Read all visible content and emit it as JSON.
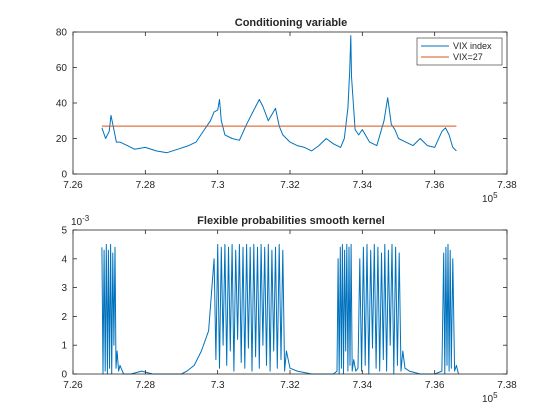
{
  "colors": {
    "series_blue": "#0072BD",
    "series_orange": "#D95319",
    "axis": "#262626"
  },
  "chart_data": [
    {
      "type": "line",
      "title": "Conditioning variable",
      "xlabel": "",
      "ylabel": "",
      "xlim": [
        7.26,
        7.38
      ],
      "ylim": [
        0,
        80
      ],
      "x_ticks": [
        "7.26",
        "7.28",
        "7.3",
        "7.32",
        "7.34",
        "7.36",
        "7.38"
      ],
      "x_tick_values": [
        7.26,
        7.28,
        7.3,
        7.32,
        7.34,
        7.36,
        7.38
      ],
      "x_multiplier": "10",
      "x_multiplier_exp": "5",
      "y_ticks": [
        "0",
        "20",
        "40",
        "60",
        "80"
      ],
      "y_tick_values": [
        0,
        20,
        40,
        60,
        80
      ],
      "legend": {
        "position": "top-right",
        "entries": [
          "VIX index",
          "VIX=27"
        ]
      },
      "series": [
        {
          "name": "VIX index",
          "color": "#0072BD",
          "x": [
            7.268,
            7.269,
            7.27,
            7.2705,
            7.271,
            7.272,
            7.273,
            7.275,
            7.277,
            7.28,
            7.283,
            7.286,
            7.289,
            7.292,
            7.294,
            7.296,
            7.298,
            7.299,
            7.3,
            7.3005,
            7.301,
            7.302,
            7.304,
            7.306,
            7.308,
            7.31,
            7.3115,
            7.3125,
            7.314,
            7.316,
            7.317,
            7.318,
            7.32,
            7.322,
            7.324,
            7.326,
            7.328,
            7.33,
            7.332,
            7.334,
            7.335,
            7.336,
            7.3365,
            7.3368,
            7.337,
            7.3375,
            7.338,
            7.339,
            7.34,
            7.342,
            7.344,
            7.346,
            7.347,
            7.348,
            7.349,
            7.35,
            7.352,
            7.354,
            7.356,
            7.358,
            7.36,
            7.362,
            7.363,
            7.364,
            7.365,
            7.366
          ],
          "y": [
            26,
            20,
            24,
            33,
            28,
            18,
            18,
            16,
            14,
            15,
            13,
            12,
            14,
            16,
            18,
            24,
            30,
            35,
            36,
            42,
            30,
            22,
            20,
            19,
            28,
            36,
            42,
            38,
            30,
            37,
            27,
            22,
            18,
            16,
            15,
            13,
            16,
            20,
            17,
            15,
            20,
            37,
            58,
            78,
            55,
            40,
            25,
            22,
            25,
            18,
            16,
            30,
            43,
            28,
            25,
            20,
            18,
            16,
            20,
            16,
            15,
            24,
            26,
            22,
            15,
            13
          ]
        },
        {
          "name": "VIX=27",
          "color": "#D95319",
          "x": [
            7.268,
            7.366
          ],
          "y": [
            27,
            27
          ]
        }
      ]
    },
    {
      "type": "line",
      "title": "Flexible probabilities smooth kernel",
      "xlabel": "",
      "ylabel": "",
      "xlim": [
        7.26,
        7.38
      ],
      "ylim": [
        0,
        0.005
      ],
      "x_ticks": [
        "7.26",
        "7.28",
        "7.3",
        "7.32",
        "7.34",
        "7.36",
        "7.38"
      ],
      "x_tick_values": [
        7.26,
        7.28,
        7.3,
        7.32,
        7.34,
        7.36,
        7.38
      ],
      "x_multiplier": "10",
      "x_multiplier_exp": "5",
      "y_ticks": [
        "0",
        "1",
        "2",
        "3",
        "4",
        "5"
      ],
      "y_tick_values": [
        0,
        0.001,
        0.002,
        0.003,
        0.004,
        0.005
      ],
      "y_multiplier": "10",
      "y_multiplier_exp": "-3",
      "series": [
        {
          "name": "",
          "color": "#0072BD",
          "x": [
            7.268,
            7.2683,
            7.2686,
            7.2689,
            7.2692,
            7.2695,
            7.2698,
            7.2701,
            7.2704,
            7.2707,
            7.271,
            7.2713,
            7.2716,
            7.2719,
            7.2722,
            7.2726,
            7.273,
            7.274,
            7.276,
            7.279,
            7.282,
            7.285,
            7.288,
            7.29,
            7.2915,
            7.2935,
            7.2955,
            7.2975,
            7.299,
            7.2995,
            7.3,
            7.3005,
            7.301,
            7.3015,
            7.302,
            7.3025,
            7.303,
            7.3035,
            7.304,
            7.3045,
            7.305,
            7.3055,
            7.306,
            7.3065,
            7.307,
            7.3075,
            7.308,
            7.3085,
            7.309,
            7.3095,
            7.31,
            7.3105,
            7.311,
            7.3115,
            7.312,
            7.3125,
            7.313,
            7.3135,
            7.314,
            7.3145,
            7.315,
            7.3155,
            7.316,
            7.3165,
            7.317,
            7.3175,
            7.318,
            7.3185,
            7.319,
            7.32,
            7.322,
            7.326,
            7.33,
            7.332,
            7.333,
            7.3333,
            7.3336,
            7.3339,
            7.3342,
            7.3345,
            7.3348,
            7.3351,
            7.3354,
            7.3357,
            7.336,
            7.3363,
            7.3366,
            7.3369,
            7.3372,
            7.3376,
            7.3382,
            7.3388,
            7.3393,
            7.3398,
            7.3403,
            7.3408,
            7.3413,
            7.3418,
            7.3423,
            7.3428,
            7.3433,
            7.3438,
            7.3443,
            7.3448,
            7.3453,
            7.3458,
            7.3462,
            7.3467,
            7.3472,
            7.3477,
            7.3482,
            7.3487,
            7.3492,
            7.3497,
            7.3502,
            7.3507,
            7.3512,
            7.3518,
            7.353,
            7.356,
            7.36,
            7.362,
            7.3625,
            7.3628,
            7.3631,
            7.3634,
            7.3637,
            7.364,
            7.3643,
            7.3646,
            7.365,
            7.3655,
            7.366,
            7.3666
          ],
          "y": [
            0.0044,
            0.0,
            0.0043,
            0.0001,
            0.0045,
            0.0,
            0.0043,
            0.0002,
            0.0045,
            0.0,
            0.0042,
            0.001,
            0.0044,
            0.0002,
            0.0008,
            0.0001,
            0.0003,
            0.0,
            0.0,
            0.0001,
            0.0,
            0.0,
            0.0,
            0.0,
            0.0001,
            0.0003,
            0.0008,
            0.0015,
            0.004,
            0.0005,
            0.0045,
            0.0002,
            0.0044,
            0.001,
            0.0045,
            0.0003,
            0.0044,
            0.0008,
            0.0045,
            0.0001,
            0.0043,
            0.0012,
            0.0045,
            0.0004,
            0.0044,
            0.0002,
            0.0045,
            0.0009,
            0.0044,
            0.0001,
            0.0045,
            0.0006,
            0.0044,
            0.0002,
            0.0045,
            0.001,
            0.0044,
            0.0003,
            0.0045,
            0.0001,
            0.0043,
            0.0008,
            0.0044,
            0.0002,
            0.0045,
            0.0005,
            0.0043,
            0.0001,
            0.0008,
            0.0002,
            0.0001,
            0.0,
            0.0,
            0.0,
            0.0001,
            0.004,
            0.0,
            0.0044,
            0.0002,
            0.0045,
            0.0,
            0.0043,
            0.0008,
            0.0045,
            0.0001,
            0.0044,
            0.0003,
            0.0045,
            0.0001,
            0.0005,
            0.0001,
            0.0002,
            0.004,
            0.0001,
            0.0044,
            0.0003,
            0.0045,
            0.0,
            0.0043,
            0.0009,
            0.0045,
            0.0002,
            0.0044,
            0.0001,
            0.0042,
            0.0005,
            0.0045,
            0.0001,
            0.0043,
            0.001,
            0.0045,
            0.0,
            0.0044,
            0.0003,
            0.0042,
            0.0001,
            0.0008,
            0.0002,
            0.0001,
            0.0,
            0.0,
            0.0001,
            0.0042,
            0.0,
            0.0044,
            0.0003,
            0.0045,
            0.0001,
            0.0043,
            0.0002,
            0.004,
            0.0001,
            0.0003,
            0.0
          ]
        }
      ]
    }
  ]
}
